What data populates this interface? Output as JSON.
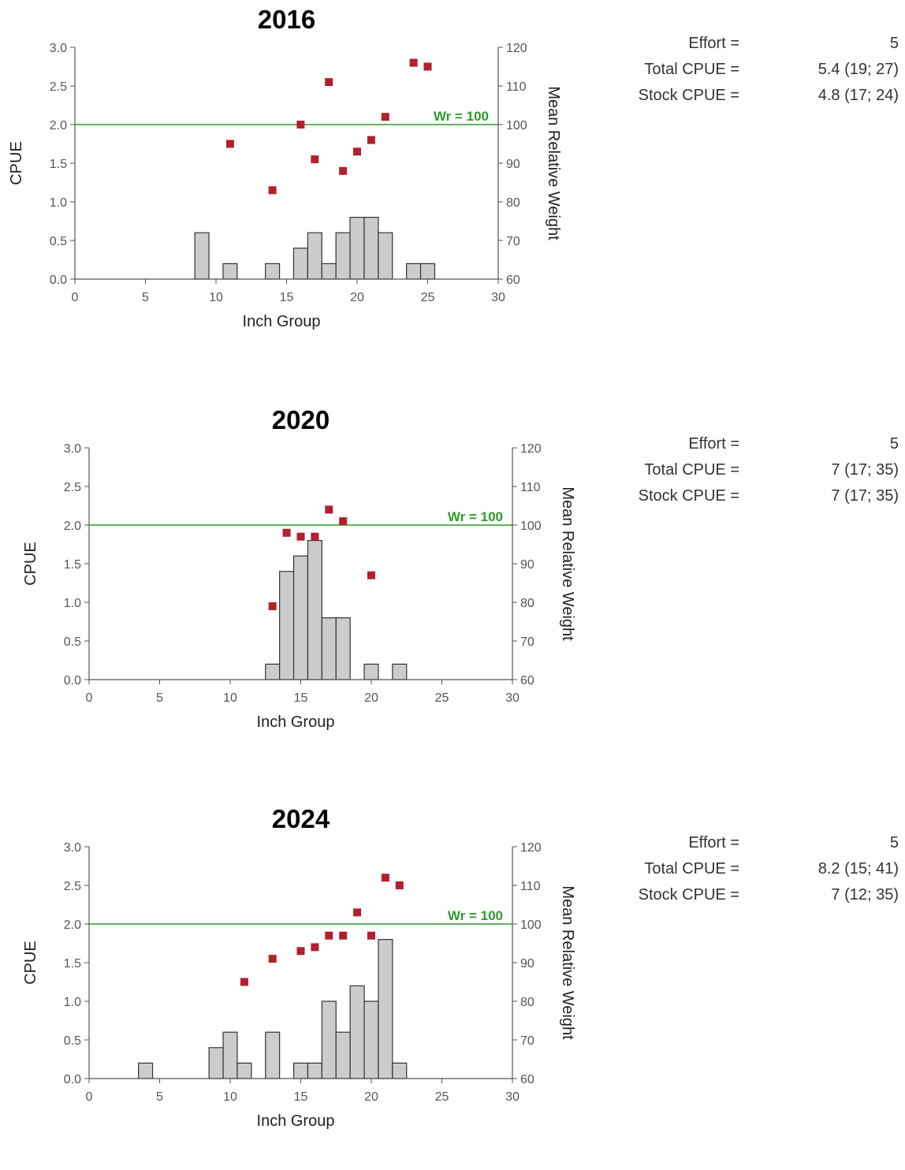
{
  "colors": {
    "bar_fill": "#cccccc",
    "bar_stroke": "#333333",
    "point": "#b2202d",
    "wr_line": "#2e9a2e",
    "axis": "#555555"
  },
  "chart_data": [
    {
      "type": "bar",
      "title": "2016",
      "xlabel": "Inch Group",
      "ylabel": "CPUE",
      "y2label": "Mean Relative Weight",
      "xlim": [
        0,
        30
      ],
      "ylim": [
        0,
        3
      ],
      "y2lim": [
        60,
        120
      ],
      "xticks": [
        "0",
        "5",
        "10",
        "15",
        "20",
        "25",
        "30"
      ],
      "yticks": [
        "0.0",
        "0.5",
        "1.0",
        "1.5",
        "2.0",
        "2.5",
        "3.0"
      ],
      "y2ticks": [
        "60",
        "70",
        "80",
        "90",
        "100",
        "110",
        "120"
      ],
      "reference": {
        "label": "Wr = 100",
        "value": 100
      },
      "bars": {
        "x": [
          9,
          11,
          14,
          16,
          17,
          18,
          19,
          20,
          21,
          22,
          24,
          25
        ],
        "values": [
          0.6,
          0.2,
          0.2,
          0.4,
          0.6,
          0.2,
          0.6,
          0.8,
          0.8,
          0.6,
          0.2,
          0.2
        ]
      },
      "points": {
        "x": [
          11,
          14,
          16,
          17,
          18,
          19,
          20,
          21,
          22,
          24,
          25
        ],
        "values": [
          95,
          83,
          100,
          91,
          111,
          88,
          93,
          96,
          102,
          116,
          115
        ]
      },
      "stats": [
        {
          "label": "Effort =",
          "value": "5"
        },
        {
          "label": "Total CPUE =",
          "value": "5.4 (19; 27)"
        },
        {
          "label": "Stock CPUE =",
          "value": "4.8 (17; 24)"
        }
      ]
    },
    {
      "type": "bar",
      "title": "2020",
      "xlabel": "Inch Group",
      "ylabel": "CPUE",
      "y2label": "Mean Relative Weight",
      "xlim": [
        0,
        30
      ],
      "ylim": [
        0,
        3
      ],
      "y2lim": [
        60,
        120
      ],
      "xticks": [
        "0",
        "5",
        "10",
        "15",
        "20",
        "25",
        "30"
      ],
      "yticks": [
        "0.0",
        "0.5",
        "1.0",
        "1.5",
        "2.0",
        "2.5",
        "3.0"
      ],
      "y2ticks": [
        "60",
        "70",
        "80",
        "90",
        "100",
        "110",
        "120"
      ],
      "reference": {
        "label": "Wr = 100",
        "value": 100
      },
      "bars": {
        "x": [
          13,
          14,
          15,
          16,
          17,
          18,
          20,
          22
        ],
        "values": [
          0.2,
          1.4,
          1.6,
          1.8,
          0.8,
          0.8,
          0.2,
          0.2
        ]
      },
      "points": {
        "x": [
          13,
          14,
          15,
          16,
          17,
          18,
          20
        ],
        "values": [
          79,
          98,
          97,
          97,
          104,
          101,
          87
        ]
      },
      "stats": [
        {
          "label": "Effort =",
          "value": "5"
        },
        {
          "label": "Total CPUE =",
          "value": "7 (17; 35)"
        },
        {
          "label": "Stock CPUE =",
          "value": "7 (17; 35)"
        }
      ]
    },
    {
      "type": "bar",
      "title": "2024",
      "xlabel": "Inch Group",
      "ylabel": "CPUE",
      "y2label": "Mean Relative Weight",
      "xlim": [
        0,
        30
      ],
      "ylim": [
        0,
        3
      ],
      "y2lim": [
        60,
        120
      ],
      "xticks": [
        "0",
        "5",
        "10",
        "15",
        "20",
        "25",
        "30"
      ],
      "yticks": [
        "0.0",
        "0.5",
        "1.0",
        "1.5",
        "2.0",
        "2.5",
        "3.0"
      ],
      "y2ticks": [
        "60",
        "70",
        "80",
        "90",
        "100",
        "110",
        "120"
      ],
      "reference": {
        "label": "Wr = 100",
        "value": 100
      },
      "bars": {
        "x": [
          4,
          9,
          10,
          11,
          13,
          15,
          16,
          17,
          18,
          19,
          20,
          21,
          22
        ],
        "values": [
          0.2,
          0.4,
          0.6,
          0.2,
          0.6,
          0.2,
          0.2,
          1.0,
          0.6,
          1.2,
          1.0,
          1.8,
          0.2
        ]
      },
      "points": {
        "x": [
          11,
          13,
          15,
          16,
          17,
          18,
          19,
          20,
          21,
          22
        ],
        "values": [
          85,
          91,
          93,
          94,
          97,
          97,
          103,
          97,
          112,
          110
        ]
      },
      "stats": [
        {
          "label": "Effort =",
          "value": "5"
        },
        {
          "label": "Total CPUE =",
          "value": "8.2 (15; 41)"
        },
        {
          "label": "Stock CPUE =",
          "value": "7 (12; 35)"
        }
      ]
    }
  ]
}
